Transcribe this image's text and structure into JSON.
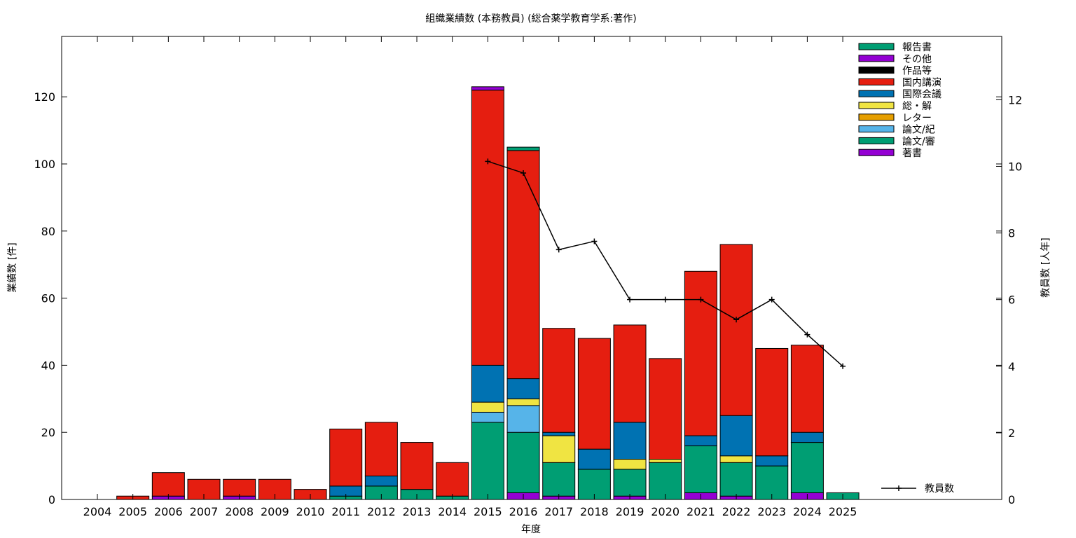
{
  "chart_data": {
    "type": "bar",
    "title": "組織業績数 (本務教員) (総合薬学教育学系:著作)",
    "xlabel": "年度",
    "ylabel": "業績数 [件]",
    "y2label": "教員数 [人年]",
    "ylim": [
      0,
      138
    ],
    "y2lim": [
      0,
      13.9
    ],
    "yticks": [
      "0",
      "20",
      "40",
      "60",
      "80",
      "100",
      "120"
    ],
    "y2ticks": [
      "0",
      "2",
      "4",
      "6",
      "8",
      "10",
      "12"
    ],
    "categories": [
      "2004",
      "2005",
      "2006",
      "2007",
      "2008",
      "2009",
      "2010",
      "2011",
      "2012",
      "2013",
      "2014",
      "2015",
      "2016",
      "2017",
      "2018",
      "2019",
      "2020",
      "2021",
      "2022",
      "2023",
      "2024",
      "2025"
    ],
    "series": [
      {
        "name": "著書",
        "color": "#9400d3",
        "values": [
          0,
          0,
          1,
          0,
          1,
          0,
          0,
          0,
          0,
          0,
          0,
          0,
          2,
          1,
          0,
          1,
          0,
          2,
          1,
          0,
          2,
          0
        ]
      },
      {
        "name": "論文/審",
        "color": "#009e73",
        "values": [
          0,
          0,
          0,
          0,
          0,
          0,
          0,
          1,
          4,
          3,
          1,
          23,
          18,
          10,
          9,
          8,
          11,
          14,
          10,
          10,
          15,
          2
        ]
      },
      {
        "name": "論文/紀",
        "color": "#56b4e9",
        "values": [
          0,
          0,
          0,
          0,
          0,
          0,
          0,
          0,
          0,
          0,
          0,
          3,
          8,
          0,
          0,
          0,
          0,
          0,
          0,
          0,
          0,
          0
        ]
      },
      {
        "name": "レター",
        "color": "#e69f00",
        "values": [
          0,
          0,
          0,
          0,
          0,
          0,
          0,
          0,
          0,
          0,
          0,
          0,
          0,
          0,
          0,
          0,
          0,
          0,
          0,
          0,
          0,
          0
        ]
      },
      {
        "name": "総・解",
        "color": "#f0e442",
        "values": [
          0,
          0,
          0,
          0,
          0,
          0,
          0,
          0,
          0,
          0,
          0,
          3,
          2,
          8,
          0,
          3,
          1,
          0,
          2,
          0,
          0,
          0
        ]
      },
      {
        "name": "国際会議",
        "color": "#0072b2",
        "values": [
          0,
          0,
          0,
          0,
          0,
          0,
          0,
          3,
          3,
          0,
          0,
          11,
          6,
          1,
          6,
          11,
          0,
          3,
          12,
          3,
          3,
          0
        ]
      },
      {
        "name": "国内講演",
        "color": "#e51e10",
        "values": [
          0,
          1,
          7,
          6,
          5,
          6,
          3,
          17,
          16,
          14,
          10,
          82,
          68,
          31,
          33,
          29,
          30,
          49,
          51,
          32,
          26,
          0
        ]
      },
      {
        "name": "作品等",
        "color": "#000000",
        "values": [
          0,
          0,
          0,
          0,
          0,
          0,
          0,
          0,
          0,
          0,
          0,
          0,
          0,
          0,
          0,
          0,
          0,
          0,
          0,
          0,
          0,
          0
        ]
      },
      {
        "name": "その他",
        "color": "#9400d3",
        "values": [
          0,
          0,
          0,
          0,
          0,
          0,
          0,
          0,
          0,
          0,
          0,
          1,
          0,
          0,
          0,
          0,
          0,
          0,
          0,
          0,
          0,
          0
        ]
      },
      {
        "name": "報告書",
        "color": "#009e73",
        "values": [
          0,
          0,
          0,
          0,
          0,
          0,
          0,
          0,
          0,
          0,
          0,
          0,
          1,
          0,
          0,
          0,
          0,
          0,
          0,
          0,
          0,
          0
        ]
      }
    ],
    "line": {
      "name": "教員数",
      "color": "#000000",
      "axis": "y2",
      "x": [
        "2015",
        "2016",
        "2017",
        "2018",
        "2019",
        "2020",
        "2021",
        "2022",
        "2023",
        "2024",
        "2025"
      ],
      "values": [
        10.15,
        9.8,
        7.5,
        7.75,
        6.0,
        6.0,
        6.0,
        5.4,
        6.0,
        4.95,
        4.0
      ]
    },
    "legend_position": "top-right",
    "line_legend_position": "bottom-right",
    "grid": false
  }
}
